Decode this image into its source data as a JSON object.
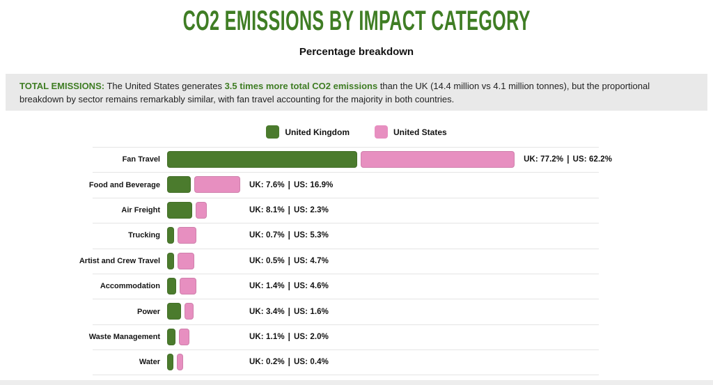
{
  "page": {
    "title": "CO2 EMISSIONS BY IMPACT CATEGORY",
    "subtitle": "Percentage breakdown"
  },
  "note": {
    "label": "TOTAL EMISSIONS:",
    "before": " The United States generates ",
    "highlight": "3.5 times more total CO2 emissions",
    "after": " than the UK (14.4 million vs 4.1 million tonnes), but the proportional breakdown by sector remains remarkably similar, with fan travel accounting for the majority in both countries."
  },
  "legend": {
    "items": [
      {
        "label": "United Kingdom",
        "color": "#4B7B2D"
      },
      {
        "label": "United States",
        "color": "#E78FC0"
      }
    ]
  },
  "chart_data": {
    "type": "bar",
    "orientation": "horizontal",
    "title": "CO2 Emissions by Impact Category",
    "subtitle": "Percentage breakdown",
    "unit": "%",
    "legend_position": "top",
    "grid": false,
    "categories": [
      "Fan Travel",
      "Food and Beverage",
      "Air Freight",
      "Trucking",
      "Artist and Crew Travel",
      "Accommodation",
      "Power",
      "Waste Management",
      "Water"
    ],
    "series": [
      {
        "name": "United Kingdom",
        "color": "#4B7B2D",
        "values": [
          77.2,
          7.6,
          8.1,
          0.7,
          0.5,
          1.4,
          3.4,
          1.1,
          0.2
        ]
      },
      {
        "name": "United States",
        "color": "#E78FC0",
        "values": [
          62.2,
          16.9,
          2.3,
          5.3,
          4.7,
          4.6,
          1.6,
          2.0,
          0.4
        ]
      }
    ],
    "value_label_template": "UK: {uk}% | US: {us}%"
  },
  "colors": {
    "title_green": "#3F7D24",
    "bar_uk": "#4B7B2D",
    "bar_us": "#E78FC0",
    "note_bg": "#E9E9E9",
    "row_line": "#E4E4E4"
  }
}
